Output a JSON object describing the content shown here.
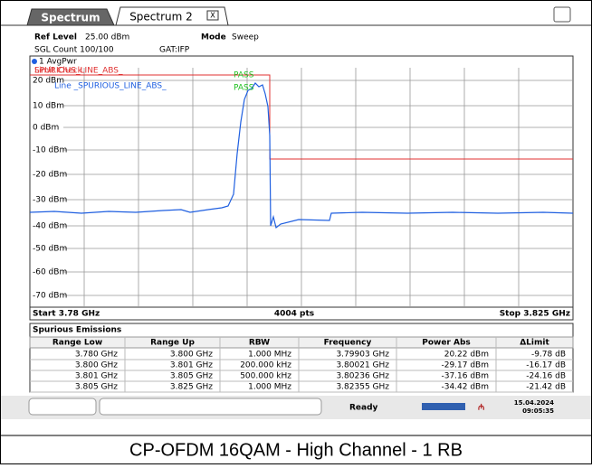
{
  "tabs": [
    "Spectrum",
    "Spectrum 2"
  ],
  "info": {
    "ref_level_label": "Ref Level",
    "ref_level": "25.00 dBm",
    "mode_label": "Mode",
    "mode": "Sweep",
    "sgl_count": "SGL Count 100/100",
    "gat": "GAT:IFP"
  },
  "plot": {
    "trace_label": "1 AvgPwr",
    "limit_check": "Limit Check",
    "limit_line_red": "SPURIOUS_LINE_ABS_",
    "limit_line_blue": "Line _SPURIOUS_LINE_ABS_",
    "pass_1": "PASS",
    "pass_2": "PASS",
    "y_labels": [
      "20 dBm",
      "10 dBm",
      "0 dBm",
      "-10 dBm",
      "-20 dBm",
      "-30 dBm",
      "-40 dBm",
      "-50 dBm",
      "-60 dBm",
      "-70 dBm"
    ],
    "start": "Start 3.78 GHz",
    "points": "4004 pts",
    "stop": "Stop 3.825 GHz"
  },
  "table": {
    "title": "Spurious Emissions",
    "header": [
      "Range Low",
      "Range Up",
      "RBW",
      "Frequency",
      "Power Abs",
      "ΔLimit"
    ],
    "rows": [
      [
        "3.780 GHz",
        "3.800 GHz",
        "1.000 MHz",
        "3.79903 GHz",
        "20.22 dBm",
        "-9.78 dB"
      ],
      [
        "3.800 GHz",
        "3.801 GHz",
        "200.000 kHz",
        "3.80021 GHz",
        "-29.17 dBm",
        "-16.17 dB"
      ],
      [
        "3.801 GHz",
        "3.805 GHz",
        "500.000 kHz",
        "3.80236 GHz",
        "-37.16 dBm",
        "-24.16 dB"
      ],
      [
        "3.805 GHz",
        "3.825 GHz",
        "1.000 MHz",
        "3.82355 GHz",
        "-34.42 dBm",
        "-21.42 dB"
      ]
    ]
  },
  "status": {
    "ready": "Ready",
    "date": "15.04.2024",
    "time": "09:05:35"
  },
  "caption": "CP-OFDM 16QAM - High Channel - 1 RB"
}
